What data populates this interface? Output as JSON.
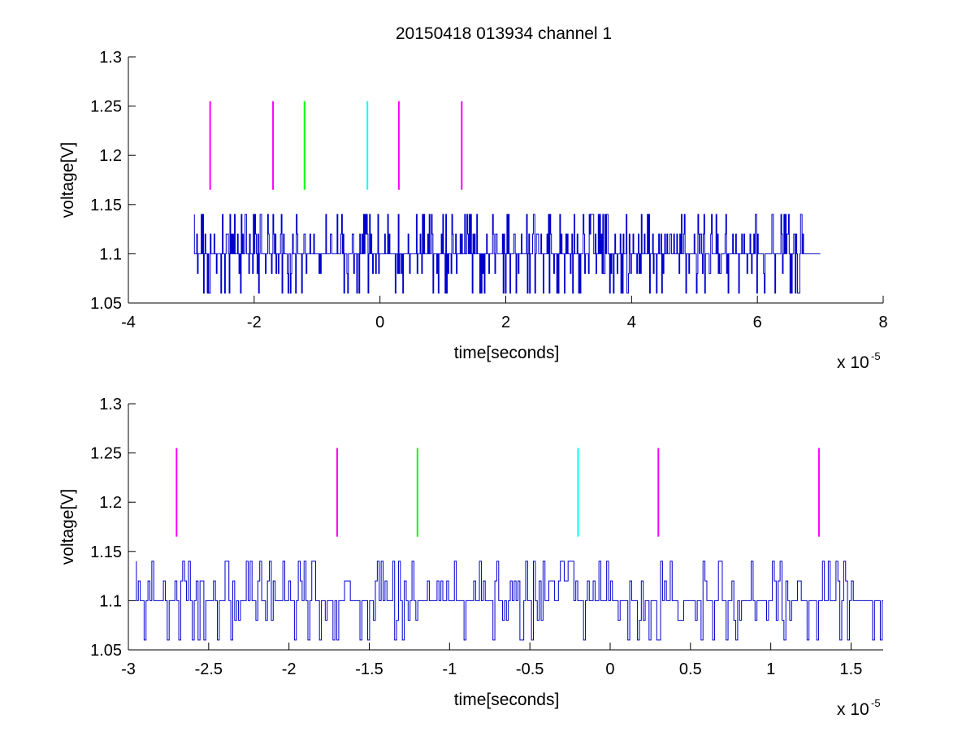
{
  "figure": {
    "title": "20150418 013934 channel 1"
  },
  "chart_data": [
    {
      "type": "line",
      "title": "20150418 013934 channel 1",
      "xlabel": "time[seconds]",
      "ylabel": "voltage[V]",
      "x_multiplier": "x 10",
      "x_multiplier_exponent": "-5",
      "xlim": [
        -4,
        8
      ],
      "ylim": [
        1.05,
        1.3
      ],
      "xticks": [
        -4,
        -2,
        0,
        2,
        4,
        6,
        8
      ],
      "xtick_labels": [
        "-4",
        "-2",
        "0",
        "2",
        "4",
        "6",
        "8"
      ],
      "yticks": [
        1.05,
        1.1,
        1.15,
        1.2,
        1.25,
        1.3
      ],
      "ytick_labels": [
        "1.05",
        "1.1",
        "1.15",
        "1.2",
        "1.25",
        "1.3"
      ],
      "grid": false,
      "signal": {
        "color": "#0000cc",
        "x_start": -2.95,
        "x_end": 7.0,
        "baseline": 1.1,
        "levels": [
          1.06,
          1.08,
          1.1,
          1.12,
          1.14
        ],
        "dense_until": 6.75
      },
      "markers": [
        {
          "x": -2.7,
          "y": [
            1.165,
            1.255
          ],
          "color": "#ff00ff"
        },
        {
          "x": -1.7,
          "y": [
            1.165,
            1.255
          ],
          "color": "#ff00ff"
        },
        {
          "x": -1.2,
          "y": [
            1.165,
            1.255
          ],
          "color": "#00ff00"
        },
        {
          "x": -0.2,
          "y": [
            1.165,
            1.255
          ],
          "color": "#00ffff"
        },
        {
          "x": 0.3,
          "y": [
            1.165,
            1.255
          ],
          "color": "#ff00ff"
        },
        {
          "x": 1.3,
          "y": [
            1.165,
            1.255
          ],
          "color": "#ff00ff"
        }
      ]
    },
    {
      "type": "line",
      "title": "",
      "xlabel": "time[seconds]",
      "ylabel": "voltage[V]",
      "x_multiplier": "x 10",
      "x_multiplier_exponent": "-5",
      "xlim": [
        -3.0,
        1.7
      ],
      "ylim": [
        1.05,
        1.3
      ],
      "xticks": [
        -3,
        -2.5,
        -2,
        -1.5,
        -1,
        -0.5,
        0,
        0.5,
        1,
        1.5
      ],
      "xtick_labels": [
        "-3",
        "-2.5",
        "-2",
        "-1.5",
        "-1",
        "-0.5",
        "0",
        "0.5",
        "1",
        "1.5"
      ],
      "yticks": [
        1.05,
        1.1,
        1.15,
        1.2,
        1.25,
        1.3
      ],
      "ytick_labels": [
        "1.05",
        "1.1",
        "1.15",
        "1.2",
        "1.25",
        "1.3"
      ],
      "grid": false,
      "signal": {
        "color": "#0000cc",
        "x_start": -2.95,
        "x_end": 1.7,
        "baseline": 1.1,
        "levels": [
          1.06,
          1.08,
          1.1,
          1.12,
          1.14
        ],
        "dense_until": 1.7
      },
      "markers": [
        {
          "x": -2.7,
          "y": [
            1.165,
            1.255
          ],
          "color": "#ff00ff"
        },
        {
          "x": -1.7,
          "y": [
            1.165,
            1.255
          ],
          "color": "#ff00ff"
        },
        {
          "x": -1.2,
          "y": [
            1.165,
            1.255
          ],
          "color": "#00ff00"
        },
        {
          "x": -0.2,
          "y": [
            1.165,
            1.255
          ],
          "color": "#00ffff"
        },
        {
          "x": 0.3,
          "y": [
            1.165,
            1.255
          ],
          "color": "#ff00ff"
        },
        {
          "x": 1.3,
          "y": [
            1.165,
            1.255
          ],
          "color": "#ff00ff"
        }
      ]
    }
  ]
}
